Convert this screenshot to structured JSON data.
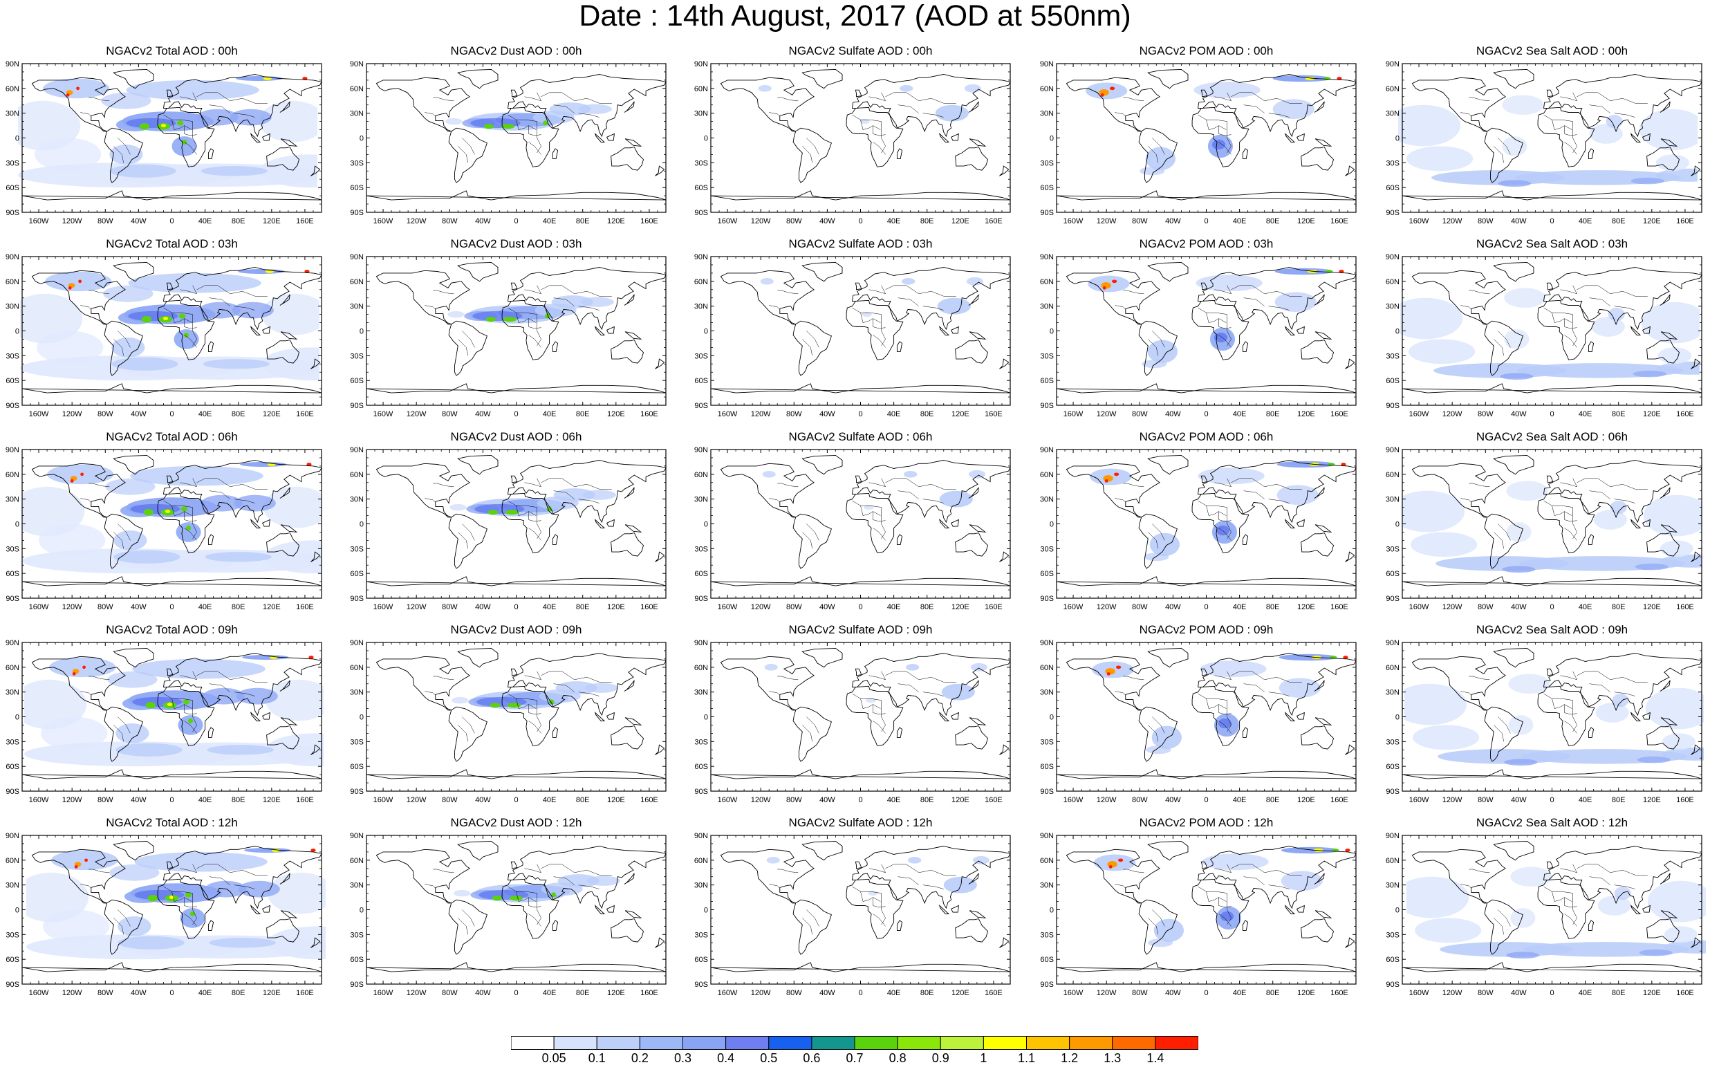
{
  "title": "Date : 14th August, 2017 (AOD at 550nm)",
  "lat_ticks": [
    "90N",
    "60N",
    "30N",
    "0",
    "30S",
    "60S",
    "90S"
  ],
  "lon_ticks": [
    "160W",
    "120W",
    "80W",
    "40W",
    "0",
    "40E",
    "80E",
    "120E",
    "160E"
  ],
  "lon_tick_values": [
    -160,
    -120,
    -80,
    -40,
    0,
    40,
    80,
    120,
    160
  ],
  "columns": [
    "total",
    "dust",
    "sulfate",
    "pom",
    "seasalt"
  ],
  "rows": [
    "00h",
    "03h",
    "06h",
    "09h",
    "12h"
  ],
  "panel_titles": [
    [
      "NGACv2 Total AOD : 00h",
      "NGACv2 Dust AOD : 00h",
      "NGACv2 Sulfate AOD : 00h",
      "NGACv2 POM AOD : 00h",
      "NGACv2 Sea Salt AOD : 00h"
    ],
    [
      "NGACv2 Total AOD : 03h",
      "NGACv2 Dust AOD : 03h",
      "NGACv2 Sulfate AOD : 03h",
      "NGACv2 POM AOD : 03h",
      "NGACv2 Sea Salt AOD : 03h"
    ],
    [
      "NGACv2 Total AOD : 06h",
      "NGACv2 Dust AOD : 06h",
      "NGACv2 Sulfate AOD : 06h",
      "NGACv2 POM AOD : 06h",
      "NGACv2 Sea Salt AOD : 06h"
    ],
    [
      "NGACv2 Total AOD : 09h",
      "NGACv2 Dust AOD : 09h",
      "NGACv2 Sulfate AOD : 09h",
      "NGACv2 POM AOD : 09h",
      "NGACv2 Sea Salt  AOD : 09h"
    ],
    [
      "NGACv2 Total AOD  : 12h",
      "NGACv2 Dust AOD : 12h",
      "NGACv2 Sulfate AOD : 12h",
      "NGACv2 POM  AOD : 12h",
      "NGACv2 Sea Salt  AOD : 12h"
    ]
  ],
  "colorbar": {
    "labels": [
      "0.05",
      "0.1",
      "0.2",
      "0.3",
      "0.4",
      "0.5",
      "0.6",
      "0.7",
      "0.8",
      "0.9",
      "1",
      "1.1",
      "1.2",
      "1.3",
      "1.4"
    ],
    "colors": [
      "#ffffff",
      "#d7e3fc",
      "#bcd0fa",
      "#9db8f7",
      "#8aa4f5",
      "#6f7ff2",
      "#1761f0",
      "#12968f",
      "#5ad20c",
      "#8be60a",
      "#bdf23c",
      "#ffff00",
      "#ffc300",
      "#ff9900",
      "#ff6a00",
      "#ff1e00"
    ]
  },
  "colors": {
    "ocean_light": "#dfe8fd",
    "haze": "#b9ccfa",
    "medium": "#8ea8f5",
    "strong": "#5f77ee",
    "green": "#5ad20c",
    "yellow": "#ffff00",
    "orange": "#ff9900",
    "red": "#ff1e00",
    "coast": "#000000"
  },
  "legend_position": "bottom-center"
}
